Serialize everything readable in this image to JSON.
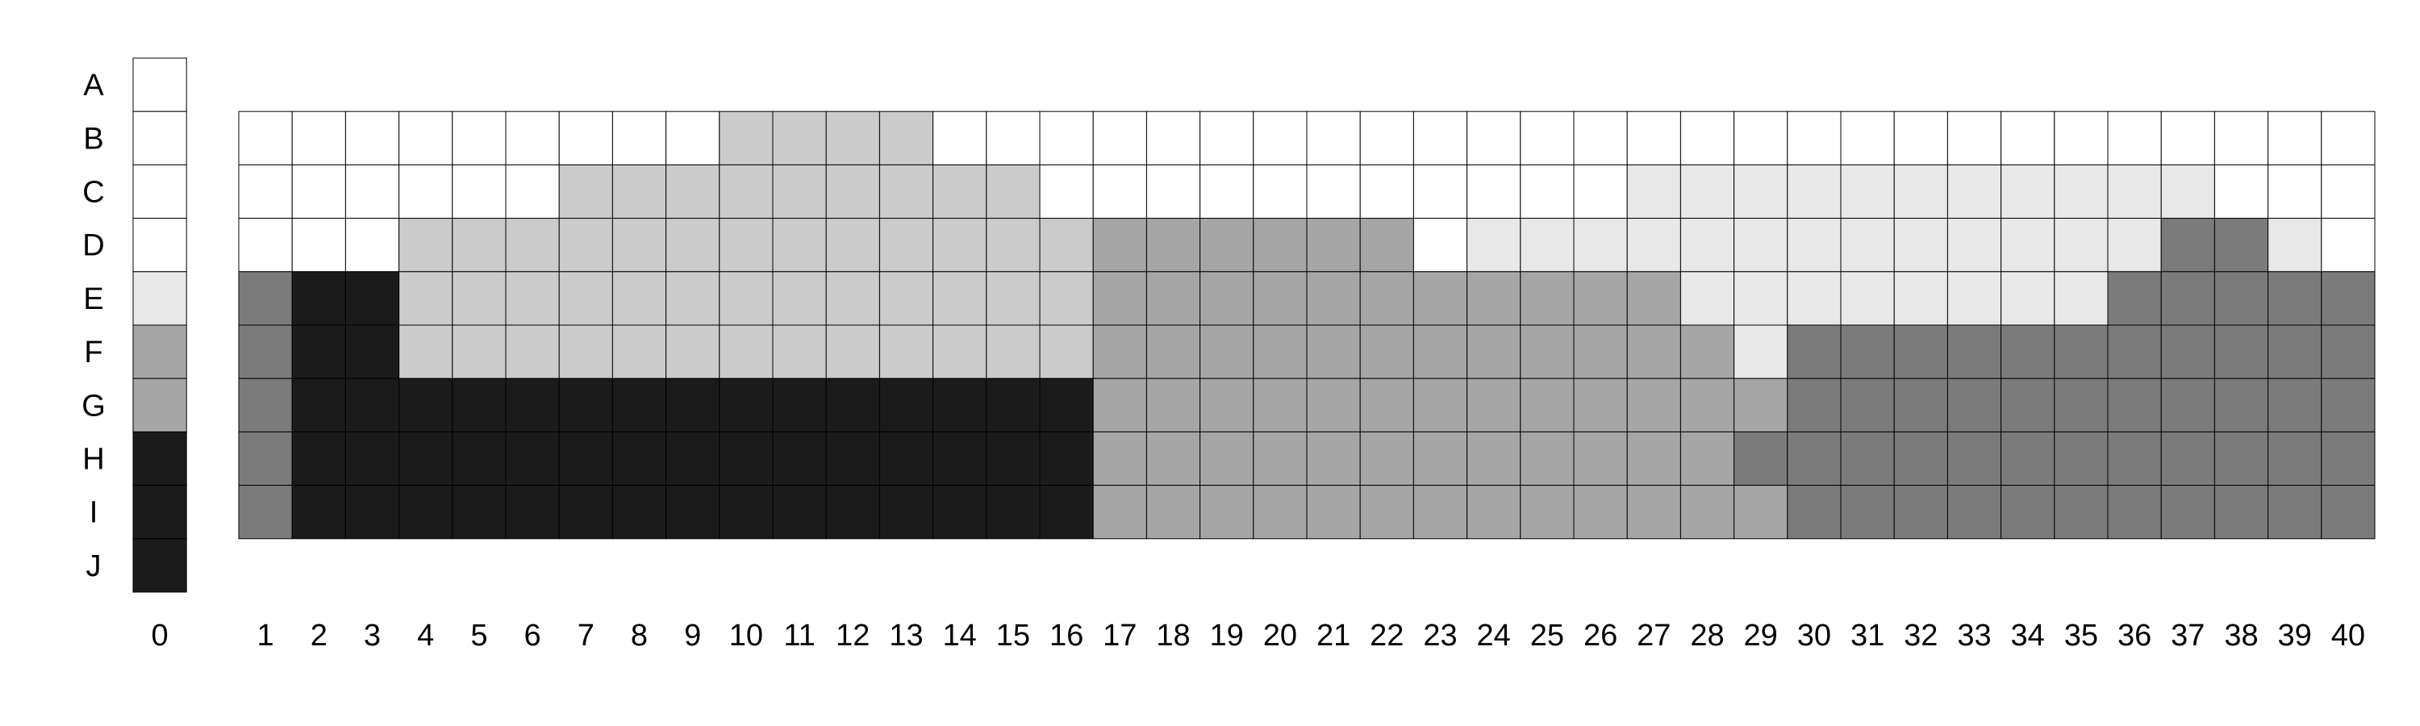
{
  "colors": {
    "w": "#ffffff",
    "l": "#e8e8e8",
    "m": "#cbcbcb",
    "g": "#a6a6a6",
    "d": "#7b7b7b",
    "k": "#1b1b1b"
  },
  "chart_data": {
    "type": "heatmap",
    "title": "",
    "xlabel": "",
    "ylabel": "",
    "grid": true,
    "legend": "none",
    "rows": [
      "A",
      "B",
      "C",
      "D",
      "E",
      "F",
      "G",
      "H",
      "I",
      "J"
    ],
    "columns": [
      "0",
      "1",
      "2",
      "3",
      "4",
      "5",
      "6",
      "7",
      "8",
      "9",
      "10",
      "11",
      "12",
      "13",
      "14",
      "15",
      "16",
      "17",
      "18",
      "19",
      "20",
      "21",
      "22",
      "23",
      "24",
      "25",
      "26",
      "27",
      "28",
      "29",
      "30",
      "31",
      "32",
      "33",
      "34",
      "35",
      "36",
      "37",
      "38",
      "39",
      "40"
    ],
    "column_0": {
      "rows": [
        "A",
        "B",
        "C",
        "D",
        "E",
        "F",
        "G",
        "H",
        "I",
        "J"
      ],
      "values": [
        "w",
        "w",
        "w",
        "w",
        "l",
        "g",
        "g",
        "k",
        "k",
        "k"
      ]
    },
    "grid_rows": [
      "B",
      "C",
      "D",
      "E",
      "F",
      "G",
      "H",
      "I"
    ],
    "grid_values": [
      "wwwwwwwwwmmmmwwwwwwwwwwwwwwwwwwwwwwwwwww",
      "wwwwwwmmmmmmmmmwwwwwwwwwwwlllllllllllwww",
      "wwwmmmmmmmmmmmmmggggggwlllllllllllllddlw",
      "dkkmmmmmmmmmmmmmggggggggggglllllllldddddd",
      "dkkmmmmmmmmmmmmmgggggggggggglddddddddddd",
      "dkkkkkkkkkkkkkkkgggggggggggggddddddddddd",
      "dkkkkkkkkkkkkkkkggggggggggggdddddddddddd",
      "dkkkkkkkkkkkkkkkgggggggggggggddddddddddd"
    ]
  }
}
